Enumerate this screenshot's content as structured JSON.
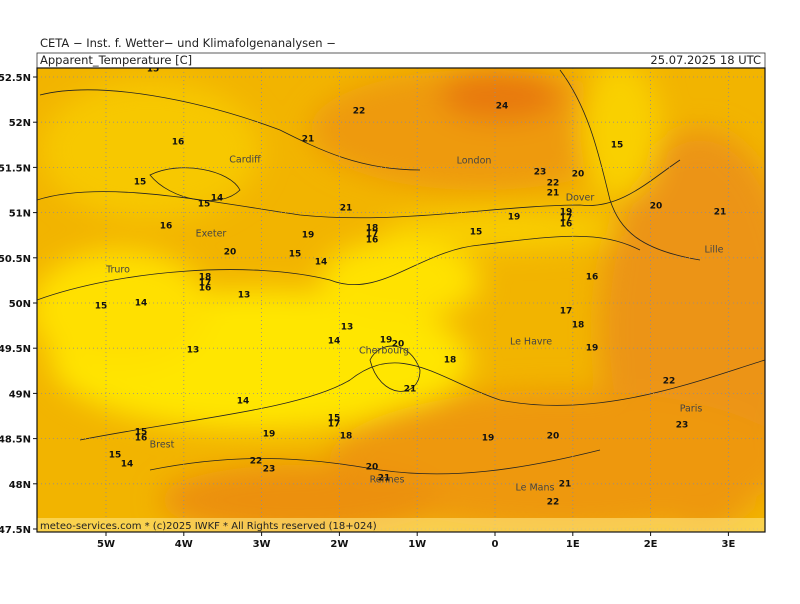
{
  "header": {
    "source": "CETA − Inst. f. Wetter− und Klimafolgenanalysen −",
    "parameter": "Apparent_Temperature [C]",
    "valid": "25.07.2025 18 UTC"
  },
  "map": {
    "lat_labels": [
      "52.5N",
      "52N",
      "51.5N",
      "51N",
      "50.5N",
      "50N",
      "49.5N",
      "49N",
      "48.5N",
      "48N",
      "47.5N"
    ],
    "lon_labels": [
      "5W",
      "4W",
      "3W",
      "2W",
      "1W",
      "0",
      "1E",
      "2E",
      "3E"
    ],
    "cities": [
      "Cardiff",
      "London",
      "Dover",
      "Exeter",
      "Truro",
      "Lille",
      "Le Havre",
      "Cherbourg",
      "Paris",
      "Brest",
      "Rennes",
      "Le Mans"
    ],
    "contour_labels": [
      15,
      22,
      24,
      16,
      21,
      15,
      15,
      14,
      15,
      23,
      20,
      22,
      21,
      21,
      16,
      19,
      17,
      16,
      19,
      20,
      21,
      18,
      17,
      16,
      19,
      15,
      20,
      15,
      14,
      18,
      17,
      16,
      16,
      14,
      13,
      15,
      17,
      18,
      13,
      14,
      19,
      20,
      18,
      19,
      13,
      21,
      22,
      14,
      15,
      17,
      18,
      15,
      16,
      19,
      19,
      20,
      23,
      15,
      14,
      22,
      23,
      20,
      21,
      21,
      22
    ],
    "footer": "meteo-services.com * (c)2025 IWKF * All Rights reserved (18+024)"
  }
}
